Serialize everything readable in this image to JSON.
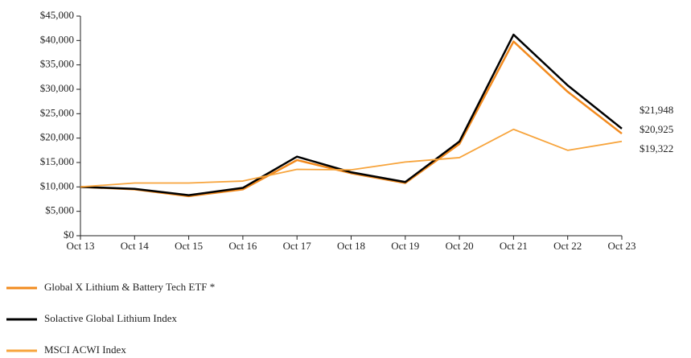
{
  "chart_data": {
    "type": "line",
    "categories": [
      "Oct 13",
      "Oct 14",
      "Oct 15",
      "Oct 16",
      "Oct 17",
      "Oct 18",
      "Oct 19",
      "Oct 20",
      "Oct 21",
      "Oct 22",
      "Oct 23"
    ],
    "series": [
      {
        "name": "Global X Lithium & Battery Tech ETF *",
        "color": "#f28a1e",
        "width": 2.5,
        "values": [
          10000,
          9500,
          8100,
          9500,
          15500,
          12800,
          10800,
          18800,
          39800,
          29500,
          20925
        ],
        "value_labels": [
          null,
          null,
          null,
          null,
          null,
          null,
          null,
          null,
          null,
          null,
          "$20,925"
        ]
      },
      {
        "name": "Solactive Global Lithium Index",
        "color": "#000000",
        "width": 2.5,
        "values": [
          10000,
          9600,
          8300,
          9800,
          16200,
          13000,
          11000,
          19300,
          41200,
          30800,
          21948
        ],
        "value_labels": [
          null,
          null,
          null,
          null,
          null,
          null,
          null,
          null,
          null,
          null,
          "$21,948"
        ]
      },
      {
        "name": "MSCI ACWI Index",
        "color": "#f7a43c",
        "width": 1.8,
        "values": [
          10000,
          10800,
          10800,
          11200,
          13600,
          13500,
          15100,
          16000,
          21800,
          17500,
          19322
        ],
        "value_labels": [
          null,
          null,
          null,
          null,
          null,
          null,
          null,
          null,
          null,
          null,
          "$19,322"
        ]
      }
    ],
    "ylim": [
      0,
      45000
    ],
    "yticks": [
      {
        "value": 0,
        "label": "$0"
      },
      {
        "value": 5000,
        "label": "$5,000"
      },
      {
        "value": 10000,
        "label": "$10,000"
      },
      {
        "value": 15000,
        "label": "$15,000"
      },
      {
        "value": 20000,
        "label": "$20,000"
      },
      {
        "value": 25000,
        "label": "$25,000"
      },
      {
        "value": 30000,
        "label": "$30,000"
      },
      {
        "value": 35000,
        "label": "$35,000"
      },
      {
        "value": 40000,
        "label": "$40,000"
      },
      {
        "value": 45000,
        "label": "$45,000"
      }
    ],
    "grid": false
  }
}
